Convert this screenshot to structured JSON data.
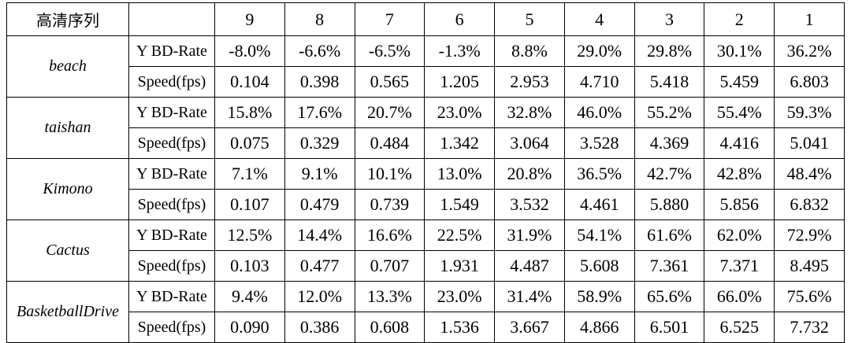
{
  "table": {
    "title": "高清序列",
    "columns": [
      "9",
      "8",
      "7",
      "6",
      "5",
      "4",
      "3",
      "2",
      "1"
    ],
    "sequences": [
      {
        "name": "beach",
        "rows": [
          {
            "metric": "Y BD-Rate",
            "values": [
              "-8.0%",
              "-6.6%",
              "-6.5%",
              "-1.3%",
              "8.8%",
              "29.0%",
              "29.8%",
              "30.1%",
              "36.2%"
            ]
          },
          {
            "metric": "Speed(fps)",
            "values": [
              "0.104",
              "0.398",
              "0.565",
              "1.205",
              "2.953",
              "4.710",
              "5.418",
              "5.459",
              "6.803"
            ]
          }
        ]
      },
      {
        "name": "taishan",
        "rows": [
          {
            "metric": "Y BD-Rate",
            "values": [
              "15.8%",
              "17.6%",
              "20.7%",
              "23.0%",
              "32.8%",
              "46.0%",
              "55.2%",
              "55.4%",
              "59.3%"
            ]
          },
          {
            "metric": "Speed(fps)",
            "values": [
              "0.075",
              "0.329",
              "0.484",
              "1.342",
              "3.064",
              "3.528",
              "4.369",
              "4.416",
              "5.041"
            ]
          }
        ]
      },
      {
        "name": "Kimono",
        "rows": [
          {
            "metric": "Y BD-Rate",
            "values": [
              "7.1%",
              "9.1%",
              "10.1%",
              "13.0%",
              "20.8%",
              "36.5%",
              "42.7%",
              "42.8%",
              "48.4%"
            ]
          },
          {
            "metric": "Speed(fps)",
            "values": [
              "0.107",
              "0.479",
              "0.739",
              "1.549",
              "3.532",
              "4.461",
              "5.880",
              "5.856",
              "6.832"
            ]
          }
        ]
      },
      {
        "name": "Cactus",
        "rows": [
          {
            "metric": "Y BD-Rate",
            "values": [
              "12.5%",
              "14.4%",
              "16.6%",
              "22.5%",
              "31.9%",
              "54.1%",
              "61.6%",
              "62.0%",
              "72.9%"
            ]
          },
          {
            "metric": "Speed(fps)",
            "values": [
              "0.103",
              "0.477",
              "0.707",
              "1.931",
              "4.487",
              "5.608",
              "7.361",
              "7.371",
              "8.495"
            ]
          }
        ]
      },
      {
        "name": "BasketballDrive",
        "rows": [
          {
            "metric": "Y BD-Rate",
            "values": [
              "9.4%",
              "12.0%",
              "13.3%",
              "23.0%",
              "31.4%",
              "58.9%",
              "65.6%",
              "66.0%",
              "75.6%"
            ]
          },
          {
            "metric": "Speed(fps)",
            "values": [
              "0.090",
              "0.386",
              "0.608",
              "1.536",
              "3.667",
              "4.866",
              "6.501",
              "6.525",
              "7.732"
            ]
          }
        ]
      }
    ]
  }
}
